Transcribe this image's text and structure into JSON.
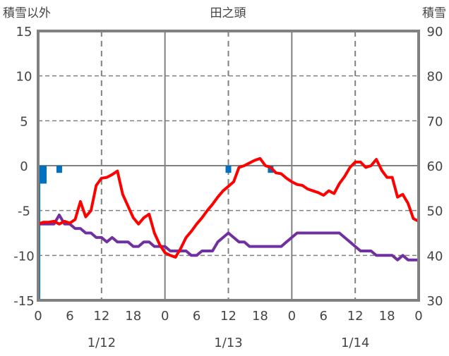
{
  "chart_data": {
    "type": "line",
    "title": "田之頭",
    "ylabel_left": "積雪以外",
    "ylabel_right": "積雪",
    "ylim_left": [
      -15,
      15
    ],
    "ylim_right": [
      30,
      90
    ],
    "yticks_left": [
      "15",
      "10",
      "5",
      "0",
      "-5",
      "-10",
      "-15"
    ],
    "yticks_right": [
      "90",
      "80",
      "70",
      "60",
      "50",
      "40",
      "30"
    ],
    "xlim_hours": [
      0,
      72
    ],
    "xticks": [
      "0",
      "6",
      "12",
      "18",
      "0",
      "6",
      "12",
      "18",
      "0",
      "6",
      "12",
      "18",
      "0"
    ],
    "date_labels": [
      "1/12",
      "1/13",
      "1/14"
    ],
    "colors": {
      "temperature": "#ff0000",
      "snow_depth": "#7030a0",
      "bars": "#0070c0",
      "grid": "#808080"
    },
    "series": [
      {
        "name": "temperature",
        "axis": "left",
        "values": [
          -6.5,
          -6.3,
          -6.3,
          -6.2,
          -6.5,
          -6.2,
          -6.4,
          -6.0,
          -4.0,
          -5.7,
          -5.0,
          -2.2,
          -1.4,
          -1.3,
          -1.0,
          -0.6,
          -3.2,
          -4.5,
          -5.8,
          -6.5,
          -5.8,
          -5.4,
          -7.5,
          -8.8,
          -9.7,
          -10.0,
          -10.2,
          -9.2,
          -8.0,
          -7.3,
          -6.5,
          -5.8,
          -5.0,
          -4.3,
          -3.5,
          -2.8,
          -2.3,
          -1.8,
          -0.2,
          0.0,
          0.3,
          0.6,
          0.8,
          0.0,
          -0.2,
          -0.8,
          -0.9,
          -1.4,
          -1.8,
          -2.1,
          -2.2,
          -2.6,
          -2.8,
          -3.0,
          -3.3,
          -2.8,
          -3.1,
          -2.0,
          -1.2,
          -0.2,
          0.4,
          0.4,
          -0.2,
          0.0,
          0.7,
          -0.5,
          -1.3,
          -1.3,
          -3.5,
          -3.2,
          -4.2,
          -5.9,
          -6.2
        ]
      },
      {
        "name": "snow_depth",
        "axis": "right",
        "values": [
          47,
          47,
          47,
          47,
          49,
          47,
          47,
          46,
          46,
          45,
          45,
          44,
          44,
          43,
          44,
          43,
          43,
          43,
          42,
          42,
          43,
          43,
          42,
          42,
          42,
          41,
          41,
          41,
          41,
          40,
          40,
          41,
          41,
          41,
          43,
          44,
          45,
          44,
          43,
          43,
          42,
          42,
          42,
          42,
          42,
          42,
          42,
          43,
          44,
          45,
          45,
          45,
          45,
          45,
          45,
          45,
          45,
          45,
          44,
          43,
          42,
          41,
          41,
          41,
          40,
          40,
          40,
          40,
          39,
          40,
          39,
          39,
          39
        ]
      },
      {
        "name": "precipitation",
        "type": "bar",
        "axis": "left",
        "hours": [
          0,
          1,
          4,
          36,
          44
        ],
        "values": [
          -15,
          -2,
          -0.8,
          -0.8,
          -0.8
        ]
      }
    ]
  }
}
